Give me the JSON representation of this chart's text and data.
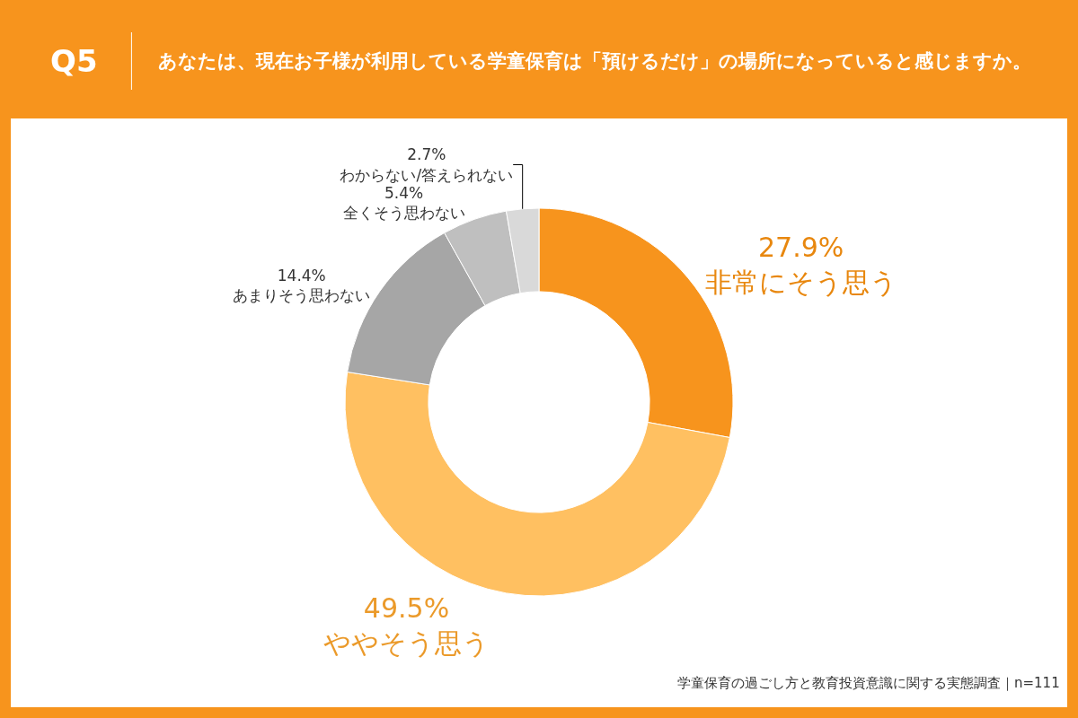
{
  "chart_data": {
    "type": "donut",
    "title": "Q5",
    "subtitle": "あなたは、現在お子様が利用している学童保育は「預けるだけ」の場所になっていると感じますか。",
    "categories": [
      "非常にそう思う",
      "ややそう思う",
      "あまりそう思わない",
      "全くそう思わない",
      "わからない/答えられない"
    ],
    "values": [
      27.9,
      49.5,
      14.4,
      5.4,
      2.7
    ],
    "colors": [
      "#f7941d",
      "#ffc061",
      "#a6a6a6",
      "#bfbfbf",
      "#d9d9d9"
    ],
    "value_labels": [
      "27.9%",
      "49.5%",
      "14.4%",
      "5.4%",
      "2.7%"
    ],
    "annotations": [
      "学童保育の過ごし方と教育投資意識に関する実態調査｜n=111"
    ],
    "legend": false
  }
}
